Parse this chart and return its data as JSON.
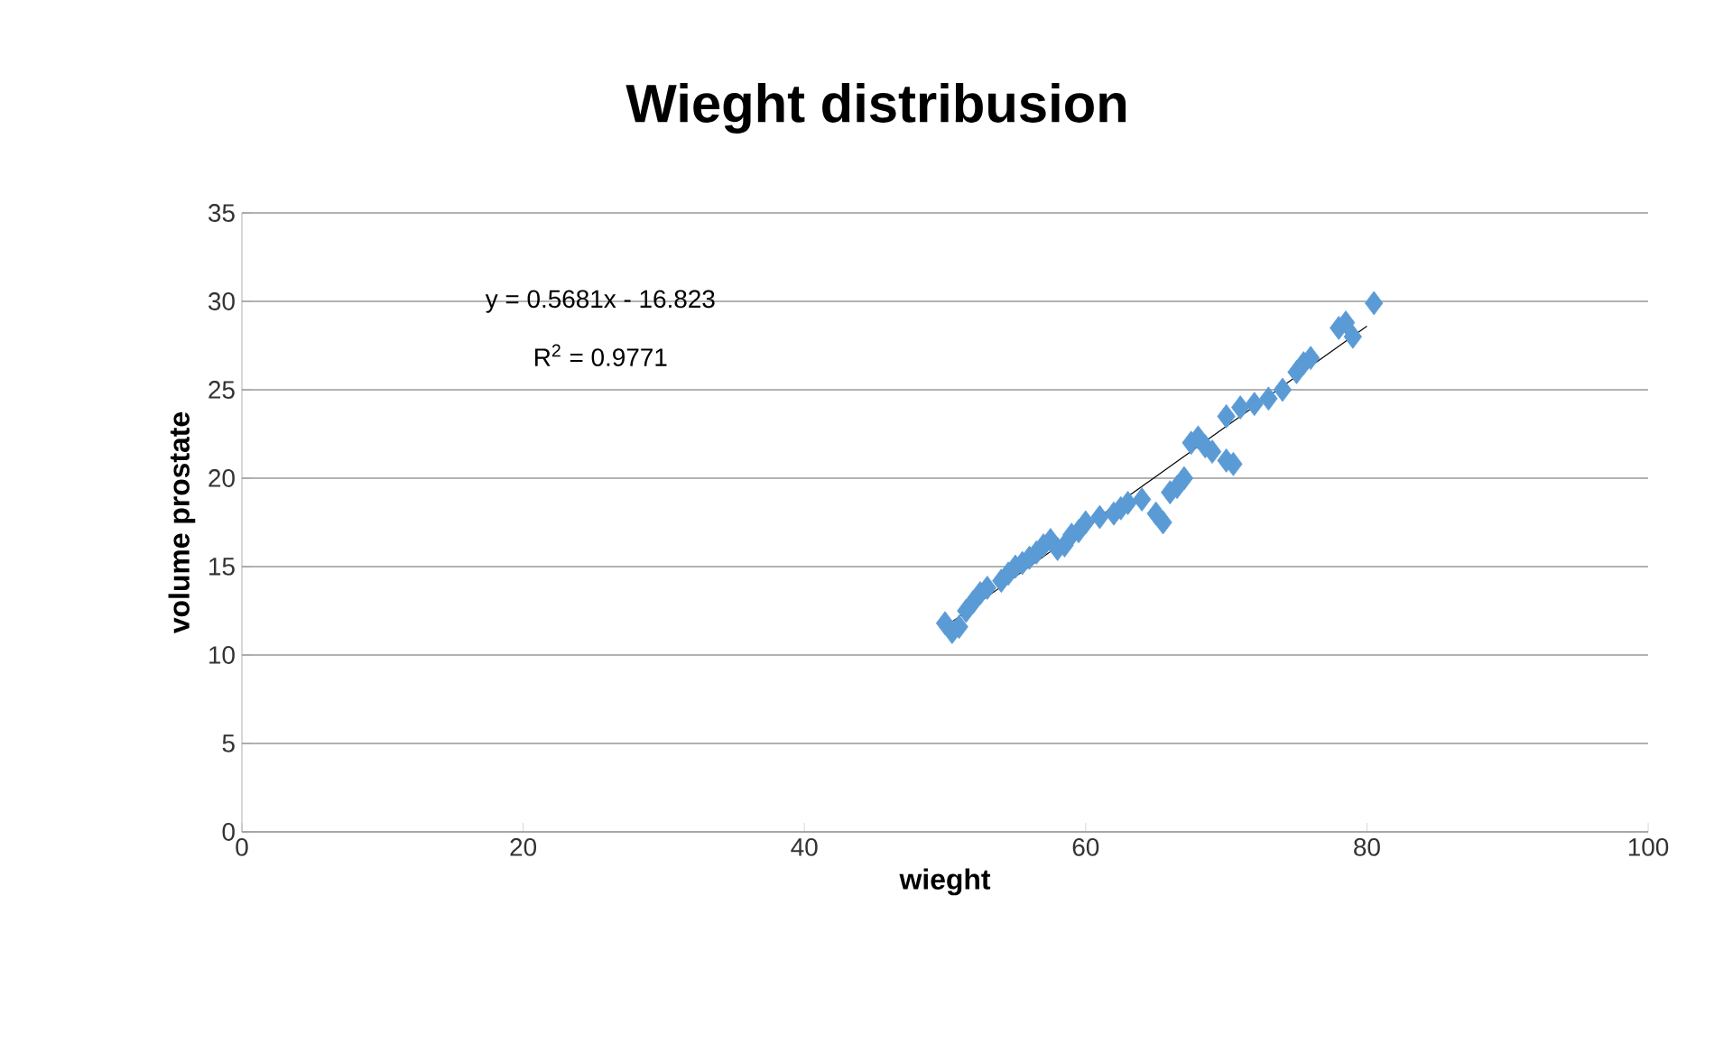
{
  "chart_data": {
    "type": "scatter",
    "title": "Wieght distribusion",
    "xlabel": "wieght",
    "ylabel": "volume prostate",
    "xlim": [
      0,
      100
    ],
    "ylim": [
      0,
      35
    ],
    "xticks": [
      0,
      20,
      40,
      60,
      80,
      100
    ],
    "yticks": [
      0,
      5,
      10,
      15,
      20,
      25,
      30,
      35
    ],
    "grid": "y",
    "annotations": [
      "y = 0.5681x - 16.823",
      "R$^{2}$ = 0.9771"
    ],
    "series": [
      {
        "marker": "diamond",
        "color": "#5b9bd5",
        "x": [
          50,
          50.5,
          51,
          51.5,
          52,
          52.5,
          53,
          54,
          54.5,
          55,
          55.5,
          56,
          56.5,
          57,
          57.5,
          58,
          58.5,
          59,
          59.5,
          60,
          61,
          62,
          62.5,
          63,
          64,
          65,
          65.5,
          66,
          66.5,
          67,
          67.5,
          68,
          68.5,
          69,
          70,
          70.5,
          70,
          71,
          72,
          73,
          74,
          75,
          75.5,
          76,
          78,
          78.5,
          79,
          80.5
        ],
        "values": [
          11.8,
          11.3,
          11.6,
          12.5,
          13,
          13.5,
          13.8,
          14.2,
          14.6,
          15,
          15.2,
          15.5,
          15.8,
          16.2,
          16.5,
          16,
          16.2,
          16.8,
          17,
          17.5,
          17.8,
          18,
          18.3,
          18.6,
          18.8,
          18,
          17.5,
          19.2,
          19.5,
          20,
          22,
          22.3,
          21.8,
          21.5,
          21,
          20.8,
          23.5,
          24,
          24.2,
          24.5,
          25,
          26,
          26.5,
          26.8,
          28.5,
          28.8,
          28,
          29.9
        ]
      },
      {
        "type": "line",
        "marker": "none",
        "color": "#000000",
        "x": [
          50,
          80
        ],
        "values": [
          11.6,
          28.6
        ]
      }
    ]
  }
}
